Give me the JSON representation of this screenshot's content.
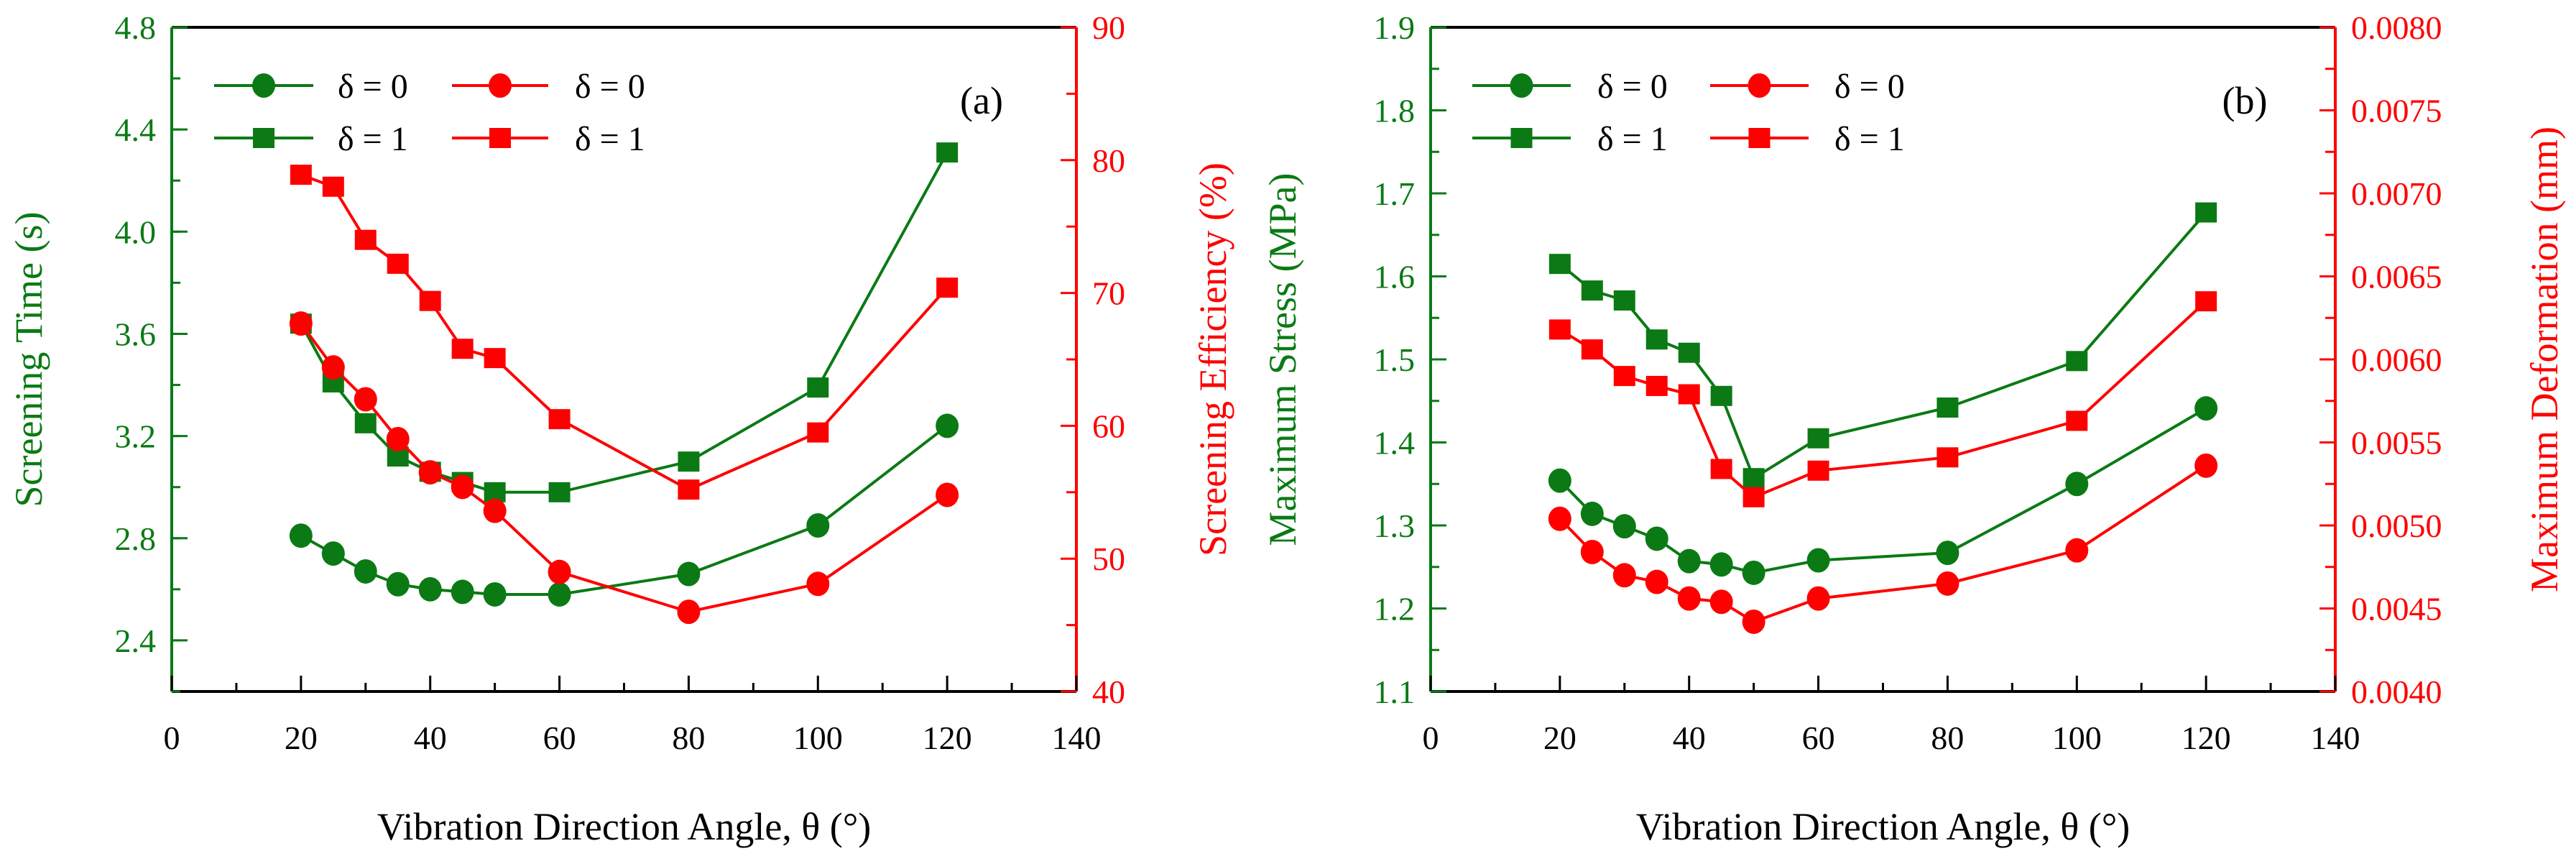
{
  "colors": {
    "green": "#0b7a14",
    "red": "#ff0000",
    "axis": "#000000"
  },
  "chart_data": [
    {
      "type": "line",
      "panel_label": "(a)",
      "xlabel": "Vibration Direction Angle, θ (°)",
      "xlim": [
        0,
        140
      ],
      "xticks": [
        0,
        20,
        40,
        60,
        80,
        100,
        120,
        140
      ],
      "ylabel_left": "Screening Time (s)",
      "ylim_left": [
        2.2,
        4.8
      ],
      "yticks_left": [
        "2.4",
        "2.8",
        "3.2",
        "3.6",
        "4.0",
        "4.4",
        "4.8"
      ],
      "ylabel_right": "Screening Efficiency (%)",
      "ylim_right": [
        40,
        90
      ],
      "yticks_right": [
        "40",
        "50",
        "60",
        "70",
        "80",
        "90"
      ],
      "x": [
        20,
        25,
        30,
        35,
        40,
        45,
        50,
        60,
        80,
        100,
        120
      ],
      "series": [
        {
          "name": "δ = 0",
          "axis": "left",
          "marker": "circle",
          "color": "green",
          "values": [
            2.81,
            2.74,
            2.67,
            2.62,
            2.6,
            2.59,
            2.58,
            2.58,
            2.66,
            2.85,
            3.24
          ]
        },
        {
          "name": "δ = 1",
          "axis": "left",
          "marker": "square",
          "color": "green",
          "values": [
            3.64,
            3.41,
            3.25,
            3.12,
            3.06,
            3.02,
            2.98,
            2.98,
            3.1,
            3.39,
            4.31
          ]
        },
        {
          "name": "δ = 0",
          "axis": "right",
          "marker": "circle",
          "color": "red",
          "values": [
            67.7,
            64.4,
            62.0,
            59.0,
            56.5,
            55.4,
            53.6,
            49.0,
            46.0,
            48.1,
            54.8
          ]
        },
        {
          "name": "δ = 1",
          "axis": "right",
          "marker": "square",
          "color": "red",
          "values": [
            78.9,
            78.0,
            74.0,
            72.2,
            69.4,
            65.8,
            65.1,
            60.5,
            55.2,
            59.5,
            70.4
          ]
        }
      ]
    },
    {
      "type": "line",
      "panel_label": "(b)",
      "xlabel": "Vibration Direction Angle, θ (°)",
      "xlim": [
        0,
        140
      ],
      "xticks": [
        0,
        20,
        40,
        60,
        80,
        100,
        120,
        140
      ],
      "ylabel_left": "Maximum Stress (MPa)",
      "ylim_left": [
        1.1,
        1.9
      ],
      "yticks_left": [
        "1.1",
        "1.2",
        "1.3",
        "1.4",
        "1.5",
        "1.6",
        "1.7",
        "1.8",
        "1.9"
      ],
      "ylabel_right": "Maximum Deformation (mm)",
      "ylim_right": [
        0.004,
        0.008
      ],
      "yticks_right": [
        "0.0040",
        "0.0045",
        "0.0050",
        "0.0055",
        "0.0060",
        "0.0065",
        "0.0070",
        "0.0075",
        "0.0080"
      ],
      "x": [
        20,
        25,
        30,
        35,
        40,
        45,
        50,
        60,
        80,
        100,
        120
      ],
      "series": [
        {
          "name": "δ = 0",
          "axis": "left",
          "marker": "circle",
          "color": "green",
          "values": [
            1.354,
            1.314,
            1.299,
            1.284,
            1.257,
            1.253,
            1.243,
            1.258,
            1.267,
            1.35,
            1.441
          ]
        },
        {
          "name": "δ = 1",
          "axis": "left",
          "marker": "square",
          "color": "green",
          "values": [
            1.615,
            1.583,
            1.571,
            1.524,
            1.508,
            1.456,
            1.357,
            1.405,
            1.442,
            1.498,
            1.677
          ]
        },
        {
          "name": "δ = 0",
          "axis": "right",
          "marker": "circle",
          "color": "red",
          "values": [
            0.00504,
            0.00484,
            0.0047,
            0.00466,
            0.00456,
            0.00454,
            0.00442,
            0.00456,
            0.00465,
            0.00485,
            0.00536
          ]
        },
        {
          "name": "δ = 1",
          "axis": "right",
          "marker": "square",
          "color": "red",
          "values": [
            0.00618,
            0.00606,
            0.0059,
            0.00584,
            0.00579,
            0.00534,
            0.00517,
            0.00533,
            0.00541,
            0.00563,
            0.00635
          ]
        }
      ]
    }
  ]
}
